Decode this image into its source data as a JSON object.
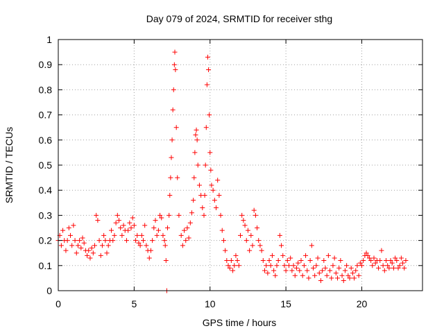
{
  "chart_data": {
    "type": "scatter",
    "title": "Day 079 of 2024, SRMTID for receiver sthg",
    "xlabel": "GPS time / hours",
    "ylabel": "SRMTID / TECUs",
    "xlim": [
      0,
      24
    ],
    "ylim": [
      0,
      1
    ],
    "xticks": [
      "0",
      "5",
      "10",
      "15",
      "20"
    ],
    "yticks": [
      "0",
      "0.1",
      "0.2",
      "0.3",
      "0.4",
      "0.5",
      "0.6",
      "0.7",
      "0.8",
      "0.9",
      "1"
    ],
    "grid": true,
    "marker": "+",
    "color": "#ff0000",
    "series": [
      {
        "name": "SRMTID",
        "points": [
          [
            0.0,
            0.2
          ],
          [
            0.1,
            0.22
          ],
          [
            0.2,
            0.18
          ],
          [
            0.3,
            0.24
          ],
          [
            0.4,
            0.2
          ],
          [
            0.5,
            0.16
          ],
          [
            0.6,
            0.2
          ],
          [
            0.7,
            0.25
          ],
          [
            0.8,
            0.22
          ],
          [
            0.9,
            0.18
          ],
          [
            1.0,
            0.26
          ],
          [
            1.1,
            0.2
          ],
          [
            1.2,
            0.15
          ],
          [
            1.3,
            0.18
          ],
          [
            1.4,
            0.2
          ],
          [
            1.5,
            0.17
          ],
          [
            1.6,
            0.21
          ],
          [
            1.7,
            0.19
          ],
          [
            1.8,
            0.16
          ],
          [
            1.9,
            0.14
          ],
          [
            2.0,
            0.16
          ],
          [
            2.1,
            0.13
          ],
          [
            2.2,
            0.17
          ],
          [
            2.3,
            0.15
          ],
          [
            2.4,
            0.18
          ],
          [
            2.5,
            0.3
          ],
          [
            2.6,
            0.28
          ],
          [
            2.7,
            0.2
          ],
          [
            2.8,
            0.14
          ],
          [
            2.9,
            0.18
          ],
          [
            3.0,
            0.22
          ],
          [
            3.1,
            0.2
          ],
          [
            3.2,
            0.15
          ],
          [
            3.3,
            0.18
          ],
          [
            3.4,
            0.2
          ],
          [
            3.5,
            0.24
          ],
          [
            3.6,
            0.2
          ],
          [
            3.7,
            0.22
          ],
          [
            3.8,
            0.27
          ],
          [
            3.9,
            0.3
          ],
          [
            4.0,
            0.28
          ],
          [
            4.1,
            0.25
          ],
          [
            4.2,
            0.22
          ],
          [
            4.3,
            0.26
          ],
          [
            4.4,
            0.24
          ],
          [
            4.5,
            0.2
          ],
          [
            4.6,
            0.24
          ],
          [
            4.7,
            0.27
          ],
          [
            4.8,
            0.25
          ],
          [
            4.9,
            0.29
          ],
          [
            5.0,
            0.26
          ],
          [
            5.1,
            0.2
          ],
          [
            5.2,
            0.22
          ],
          [
            5.3,
            0.19
          ],
          [
            5.4,
            0.18
          ],
          [
            5.5,
            0.22
          ],
          [
            5.6,
            0.2
          ],
          [
            5.7,
            0.26
          ],
          [
            5.8,
            0.18
          ],
          [
            5.9,
            0.16
          ],
          [
            6.0,
            0.13
          ],
          [
            6.1,
            0.16
          ],
          [
            6.2,
            0.2
          ],
          [
            6.3,
            0.25
          ],
          [
            6.4,
            0.28
          ],
          [
            6.5,
            0.22
          ],
          [
            6.6,
            0.24
          ],
          [
            6.7,
            0.3
          ],
          [
            6.8,
            0.29
          ],
          [
            6.9,
            0.22
          ],
          [
            7.0,
            0.2
          ],
          [
            7.05,
            0.18
          ],
          [
            7.1,
            0.12
          ],
          [
            7.15,
            0.0
          ],
          [
            7.2,
            0.25
          ],
          [
            7.3,
            0.3
          ],
          [
            7.35,
            0.38
          ],
          [
            7.4,
            0.45
          ],
          [
            7.45,
            0.53
          ],
          [
            7.5,
            0.6
          ],
          [
            7.55,
            0.72
          ],
          [
            7.6,
            0.8
          ],
          [
            7.65,
            0.9
          ],
          [
            7.68,
            0.95
          ],
          [
            7.72,
            0.88
          ],
          [
            7.78,
            0.65
          ],
          [
            7.85,
            0.45
          ],
          [
            7.95,
            0.3
          ],
          [
            8.1,
            0.22
          ],
          [
            8.2,
            0.18
          ],
          [
            8.3,
            0.24
          ],
          [
            8.4,
            0.2
          ],
          [
            8.5,
            0.25
          ],
          [
            8.6,
            0.21
          ],
          [
            8.7,
            0.27
          ],
          [
            8.8,
            0.31
          ],
          [
            8.9,
            0.36
          ],
          [
            8.95,
            0.45
          ],
          [
            9.0,
            0.55
          ],
          [
            9.05,
            0.62
          ],
          [
            9.1,
            0.64
          ],
          [
            9.15,
            0.6
          ],
          [
            9.2,
            0.5
          ],
          [
            9.3,
            0.42
          ],
          [
            9.4,
            0.38
          ],
          [
            9.5,
            0.33
          ],
          [
            9.6,
            0.3
          ],
          [
            9.65,
            0.38
          ],
          [
            9.7,
            0.5
          ],
          [
            9.75,
            0.65
          ],
          [
            9.8,
            0.82
          ],
          [
            9.85,
            0.93
          ],
          [
            9.9,
            0.88
          ],
          [
            9.95,
            0.7
          ],
          [
            10.0,
            0.55
          ],
          [
            10.05,
            0.48
          ],
          [
            10.1,
            0.42
          ],
          [
            10.2,
            0.4
          ],
          [
            10.3,
            0.36
          ],
          [
            10.4,
            0.33
          ],
          [
            10.5,
            0.44
          ],
          [
            10.6,
            0.38
          ],
          [
            10.7,
            0.3
          ],
          [
            10.8,
            0.24
          ],
          [
            10.9,
            0.2
          ],
          [
            11.0,
            0.16
          ],
          [
            11.1,
            0.12
          ],
          [
            11.2,
            0.1
          ],
          [
            11.3,
            0.09
          ],
          [
            11.4,
            0.12
          ],
          [
            11.5,
            0.08
          ],
          [
            11.6,
            0.1
          ],
          [
            11.7,
            0.14
          ],
          [
            11.8,
            0.12
          ],
          [
            11.9,
            0.1
          ],
          [
            12.0,
            0.22
          ],
          [
            12.1,
            0.3
          ],
          [
            12.2,
            0.28
          ],
          [
            12.3,
            0.26
          ],
          [
            12.4,
            0.2
          ],
          [
            12.5,
            0.24
          ],
          [
            12.6,
            0.16
          ],
          [
            12.7,
            0.22
          ],
          [
            12.8,
            0.18
          ],
          [
            12.9,
            0.32
          ],
          [
            13.0,
            0.3
          ],
          [
            13.1,
            0.25
          ],
          [
            13.2,
            0.2
          ],
          [
            13.3,
            0.18
          ],
          [
            13.4,
            0.16
          ],
          [
            13.5,
            0.12
          ],
          [
            13.6,
            0.08
          ],
          [
            13.7,
            0.1
          ],
          [
            13.8,
            0.07
          ],
          [
            13.9,
            0.12
          ],
          [
            14.0,
            0.1
          ],
          [
            14.1,
            0.14
          ],
          [
            14.2,
            0.08
          ],
          [
            14.3,
            0.06
          ],
          [
            14.4,
            0.1
          ],
          [
            14.5,
            0.12
          ],
          [
            14.6,
            0.22
          ],
          [
            14.7,
            0.18
          ],
          [
            14.8,
            0.14
          ],
          [
            14.9,
            0.1
          ],
          [
            15.0,
            0.08
          ],
          [
            15.1,
            0.12
          ],
          [
            15.2,
            0.1
          ],
          [
            15.3,
            0.13
          ],
          [
            15.4,
            0.08
          ],
          [
            15.5,
            0.1
          ],
          [
            15.6,
            0.06
          ],
          [
            15.7,
            0.09
          ],
          [
            15.8,
            0.11
          ],
          [
            15.9,
            0.08
          ],
          [
            16.0,
            0.12
          ],
          [
            16.1,
            0.06
          ],
          [
            16.2,
            0.1
          ],
          [
            16.3,
            0.14
          ],
          [
            16.4,
            0.08
          ],
          [
            16.5,
            0.05
          ],
          [
            16.6,
            0.12
          ],
          [
            16.7,
            0.18
          ],
          [
            16.8,
            0.09
          ],
          [
            16.9,
            0.06
          ],
          [
            17.0,
            0.1
          ],
          [
            17.1,
            0.13
          ],
          [
            17.2,
            0.07
          ],
          [
            17.3,
            0.04
          ],
          [
            17.4,
            0.08
          ],
          [
            17.5,
            0.12
          ],
          [
            17.6,
            0.09
          ],
          [
            17.7,
            0.06
          ],
          [
            17.8,
            0.14
          ],
          [
            17.9,
            0.08
          ],
          [
            18.0,
            0.05
          ],
          [
            18.1,
            0.1
          ],
          [
            18.2,
            0.13
          ],
          [
            18.3,
            0.07
          ],
          [
            18.4,
            0.05
          ],
          [
            18.5,
            0.09
          ],
          [
            18.6,
            0.12
          ],
          [
            18.7,
            0.06
          ],
          [
            18.8,
            0.04
          ],
          [
            18.9,
            0.08
          ],
          [
            19.0,
            0.1
          ],
          [
            19.1,
            0.06
          ],
          [
            19.2,
            0.05
          ],
          [
            19.3,
            0.09
          ],
          [
            19.4,
            0.07
          ],
          [
            19.5,
            0.05
          ],
          [
            19.6,
            0.08
          ],
          [
            19.7,
            0.1
          ],
          [
            19.8,
            0.06
          ],
          [
            19.9,
            0.11
          ],
          [
            20.0,
            0.1
          ],
          [
            20.1,
            0.12
          ],
          [
            20.2,
            0.14
          ],
          [
            20.3,
            0.15
          ],
          [
            20.4,
            0.14
          ],
          [
            20.5,
            0.13
          ],
          [
            20.6,
            0.12
          ],
          [
            20.7,
            0.1
          ],
          [
            20.8,
            0.13
          ],
          [
            20.9,
            0.11
          ],
          [
            21.0,
            0.12
          ],
          [
            21.1,
            0.09
          ],
          [
            21.2,
            0.12
          ],
          [
            21.3,
            0.16
          ],
          [
            21.4,
            0.1
          ],
          [
            21.5,
            0.08
          ],
          [
            21.6,
            0.12
          ],
          [
            21.7,
            0.1
          ],
          [
            21.8,
            0.09
          ],
          [
            21.9,
            0.12
          ],
          [
            22.0,
            0.11
          ],
          [
            22.1,
            0.09
          ],
          [
            22.2,
            0.13
          ],
          [
            22.3,
            0.12
          ],
          [
            22.4,
            0.09
          ],
          [
            22.5,
            0.1
          ],
          [
            22.6,
            0.13
          ],
          [
            22.7,
            0.11
          ],
          [
            22.8,
            0.09
          ],
          [
            22.9,
            0.12
          ]
        ]
      }
    ]
  }
}
